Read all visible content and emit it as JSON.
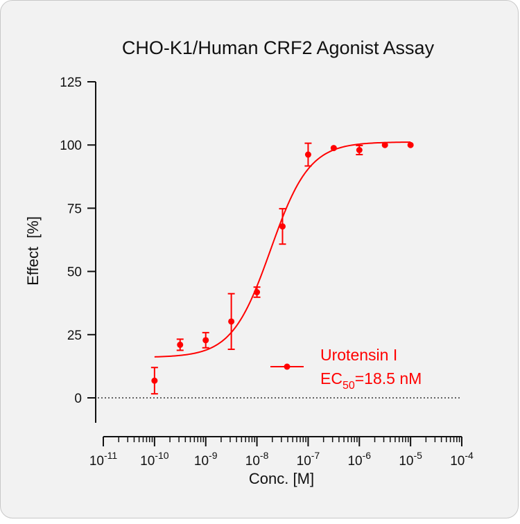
{
  "chart_data": {
    "type": "scatter",
    "title": "CHO-K1/Human CRF2 Agonist Assay",
    "xlabel": "Conc. [M]",
    "ylabel": "Effect  [%]",
    "x_scale": "log10",
    "xlim_exponents": [
      -11,
      -4
    ],
    "xticks": [
      "10-11",
      "10-10",
      "10-9",
      "10-8",
      "10-7",
      "10-6",
      "10-5",
      "10-4"
    ],
    "ylim": [
      -10,
      125
    ],
    "yticks": [
      0,
      25,
      50,
      75,
      100,
      125
    ],
    "grid": false,
    "baseline_y": 0,
    "legend_position": "bottom-right",
    "series": [
      {
        "name": "Urotensin I",
        "color": "#ff0000",
        "x": [
          "1e-10",
          "3.16e-10",
          "1e-9",
          "3.16e-9",
          "1e-8",
          "3.16e-8",
          "1e-7",
          "3.16e-7",
          "1e-6",
          "3.16e-6",
          "1e-5"
        ],
        "y": [
          6.8,
          21,
          22.8,
          30.2,
          41.8,
          67.8,
          96.2,
          98.8,
          98,
          100,
          100
        ],
        "error": [
          5.2,
          2.2,
          3,
          11,
          2,
          7,
          4.5,
          0.5,
          1.8,
          0.5,
          0.5
        ],
        "fit": {
          "model": "4PL",
          "bottom": 16,
          "top": 101.2,
          "ec50": "1.85e-8",
          "hill": 1.15
        }
      }
    ],
    "legend": {
      "label": "Urotensin I",
      "ec50_prefix": "EC",
      "ec50_subscript": "50",
      "ec50_value": "=18.5 nM"
    }
  }
}
